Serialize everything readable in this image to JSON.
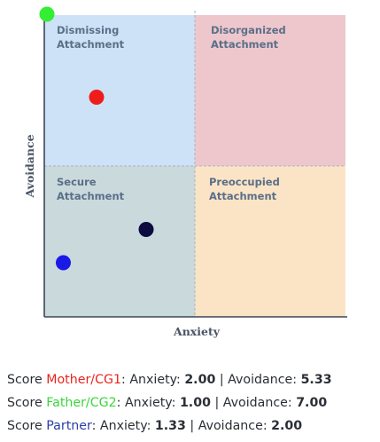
{
  "chart_data": {
    "type": "scatter",
    "x_axis": {
      "label": "Anxiety",
      "range": [
        1,
        7
      ]
    },
    "y_axis": {
      "label": "Avoidance",
      "range": [
        1,
        7
      ]
    },
    "quadrants": [
      {
        "id": "dismissing",
        "position": "top-left",
        "line1": "Dismissing",
        "line2": "Attachment",
        "color": "#cde2f6"
      },
      {
        "id": "disorganized",
        "position": "top-right",
        "line1": "Disorganized",
        "line2": "Attachment",
        "color": "#eec7cd"
      },
      {
        "id": "secure",
        "position": "bottom-left",
        "line1": "Secure",
        "line2": "Attachment",
        "color": "#cad9dc"
      },
      {
        "id": "preoccupied",
        "position": "bottom-right",
        "line1": "Preoccupied",
        "line2": "Attachment",
        "color": "#fbe4c6"
      }
    ],
    "points": [
      {
        "id": "mother",
        "x": 2.0,
        "y": 5.33,
        "color": "#ee1c1c"
      },
      {
        "id": "father",
        "x": 1.0,
        "y": 7.0,
        "color": "#33ee33"
      },
      {
        "id": "partner",
        "x": 1.33,
        "y": 2.0,
        "color": "#1a1ae6"
      },
      {
        "id": "other",
        "x": 3.0,
        "y": 2.67,
        "color": "#0b0b3f"
      }
    ]
  },
  "scores": [
    {
      "prefix": "Score",
      "name": "Mother/CG1",
      "name_color": "#e8261e",
      "anxiety_label": "Anxiety:",
      "anxiety": "2.00",
      "sep": "|",
      "avoidance_label": "Avoidance:",
      "avoidance": "5.33"
    },
    {
      "prefix": "Score",
      "name": "Father/CG2",
      "name_color": "#3ad63a",
      "anxiety_label": "Anxiety:",
      "anxiety": "1.00",
      "sep": "|",
      "avoidance_label": "Avoidance:",
      "avoidance": "7.00"
    },
    {
      "prefix": "Score",
      "name": "Partner",
      "name_color": "#2a3fa8",
      "anxiety_label": "Anxiety:",
      "anxiety": "1.33",
      "sep": "|",
      "avoidance_label": "Avoidance:",
      "avoidance": "2.00"
    }
  ]
}
